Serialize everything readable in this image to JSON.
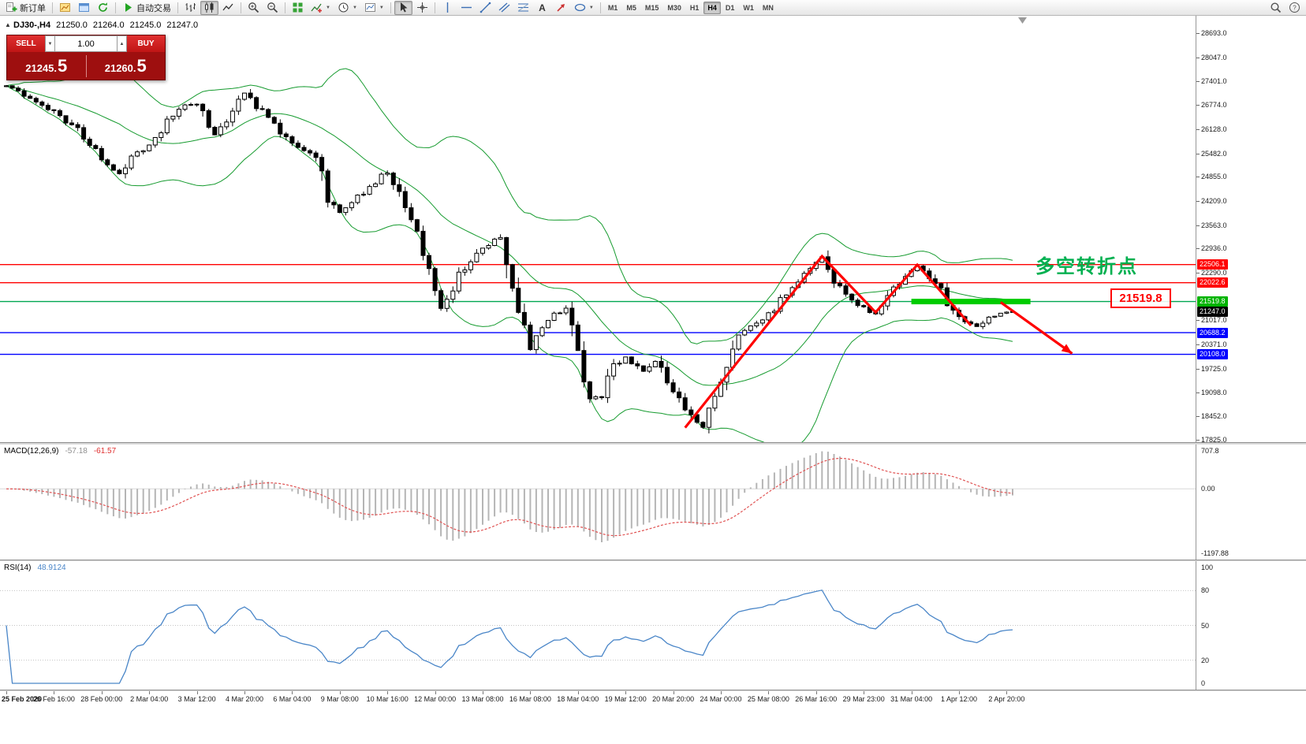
{
  "toolbar": {
    "new_order_label": "新订单",
    "autotrading_label": "自动交易",
    "timeframes": [
      "M1",
      "M5",
      "M15",
      "M30",
      "H1",
      "H4",
      "D1",
      "W1",
      "MN"
    ],
    "active_timeframe": "H4"
  },
  "trade_panel": {
    "sell_label": "SELL",
    "buy_label": "BUY",
    "volume": "1.00",
    "sell_price_small": "21245.",
    "sell_price_big": "5",
    "buy_price_small": "21260.",
    "buy_price_big": "5"
  },
  "chart_header": {
    "symbol_period": "DJ30-,H4",
    "open": "21250.0",
    "high": "21264.0",
    "low": "21245.0",
    "close": "21247.0"
  },
  "annotations": {
    "turning_point_text": "多空转折点",
    "price_label": "21519.8"
  },
  "indicator_panels": {
    "macd": {
      "label": "MACD(12,26,9)",
      "value1": "-57.18",
      "value2": "-61.57"
    },
    "rsi": {
      "label": "RSI(14)",
      "value": "48.9124"
    }
  },
  "price_axis": {
    "ticks": [
      "28693.0",
      "28047.0",
      "27401.0",
      "26774.0",
      "26128.0",
      "25482.0",
      "24855.0",
      "24209.0",
      "23563.0",
      "22936.0",
      "22290.0",
      "21017.0",
      "20371.0",
      "19725.0",
      "19098.0",
      "18452.0",
      "17825.0"
    ],
    "badges": [
      {
        "text": "22506.1",
        "color": "#ff0000"
      },
      {
        "text": "22022.6",
        "color": "#ff0000"
      },
      {
        "text": "21519.8",
        "color": "#00b400"
      },
      {
        "text": "21247.0",
        "color": "#000000"
      },
      {
        "text": "20688.2",
        "color": "#0000ff"
      },
      {
        "text": "20108.0",
        "color": "#0000ff"
      }
    ]
  },
  "time_axis": {
    "labels": [
      "25 Feb 2020",
      "26 Feb 16:00",
      "28 Feb 00:00",
      "2 Mar 04:00",
      "3 Mar 12:00",
      "4 Mar 20:00",
      "6 Mar 04:00",
      "9 Mar 08:00",
      "10 Mar 16:00",
      "12 Mar 00:00",
      "13 Mar 08:00",
      "16 Mar 08:00",
      "18 Mar 04:00",
      "19 Mar 12:00",
      "20 Mar 20:00",
      "24 Mar 00:00",
      "25 Mar 08:00",
      "26 Mar 16:00",
      "29 Mar 23:00",
      "31 Mar 04:00",
      "1 Apr 12:00",
      "2 Apr 20:00"
    ]
  },
  "chart_data": {
    "type": "candlestick",
    "symbol": "DJ30-",
    "timeframe": "H4",
    "last_bar_ohlc": {
      "open": 21250.0,
      "high": 21264.0,
      "low": 21245.0,
      "close": 21247.0
    },
    "bar_count": 170,
    "price_axis_range": {
      "top": 28693.0,
      "bottom": 17825.0
    },
    "close_anchors": [
      [
        0,
        27320
      ],
      [
        3,
        27050
      ],
      [
        8,
        26600
      ],
      [
        12,
        26100
      ],
      [
        16,
        25350
      ],
      [
        19,
        24950
      ],
      [
        21,
        25410
      ],
      [
        24,
        25700
      ],
      [
        29,
        26700
      ],
      [
        32,
        26850
      ],
      [
        35,
        26000
      ],
      [
        38,
        26600
      ],
      [
        40,
        27080
      ],
      [
        44,
        26400
      ],
      [
        48,
        25750
      ],
      [
        52,
        25350
      ],
      [
        54,
        24300
      ],
      [
        56,
        23900
      ],
      [
        60,
        24450
      ],
      [
        64,
        25000
      ],
      [
        68,
        23700
      ],
      [
        71,
        22300
      ],
      [
        73,
        21300
      ],
      [
        76,
        22250
      ],
      [
        80,
        22950
      ],
      [
        83,
        23300
      ],
      [
        85,
        21900
      ],
      [
        88,
        20300
      ],
      [
        90,
        20800
      ],
      [
        92,
        21150
      ],
      [
        94,
        21300
      ],
      [
        96,
        20000
      ],
      [
        98,
        19000
      ],
      [
        100,
        18900
      ],
      [
        102,
        19800
      ],
      [
        104,
        20050
      ],
      [
        107,
        19650
      ],
      [
        109,
        19950
      ],
      [
        112,
        19150
      ],
      [
        114,
        18700
      ],
      [
        116,
        18300
      ],
      [
        117,
        18200
      ],
      [
        118,
        18550
      ],
      [
        120,
        19400
      ],
      [
        123,
        20700
      ],
      [
        126,
        20950
      ],
      [
        128,
        21150
      ],
      [
        131,
        21750
      ],
      [
        134,
        22250
      ],
      [
        137,
        22730
      ],
      [
        139,
        22050
      ],
      [
        142,
        21500
      ],
      [
        146,
        21180
      ],
      [
        149,
        21900
      ],
      [
        153,
        22480
      ],
      [
        156,
        22050
      ],
      [
        159,
        21250
      ],
      [
        161,
        20950
      ],
      [
        163,
        20850
      ],
      [
        165,
        21100
      ],
      [
        167,
        21180
      ],
      [
        169,
        21247
      ]
    ],
    "horizontal_levels": [
      {
        "price": 22506.1,
        "color": "#ff0000"
      },
      {
        "price": 22022.6,
        "color": "#ff0000"
      },
      {
        "price": 21519.8,
        "color": "#00a651"
      },
      {
        "price": 20688.2,
        "color": "#0000ff"
      },
      {
        "price": 20108.0,
        "color": "#0000ff"
      }
    ],
    "support_zone": {
      "price": 21519.8,
      "from_bar": 152,
      "to_bar": 172,
      "color": "#00cc00"
    },
    "trend_lines": [
      {
        "points": [
          [
            114,
            18150
          ],
          [
            137,
            22730
          ],
          [
            146,
            21230
          ],
          [
            153,
            22500
          ],
          [
            162,
            20880
          ]
        ],
        "color": "#ff0000",
        "arrow": false
      },
      {
        "points": [
          [
            167,
            21500
          ],
          [
            179,
            20130
          ]
        ],
        "color": "#ff0000",
        "arrow": true
      }
    ],
    "overlays": {
      "bollinger_bands": {
        "period": 20,
        "deviation": 2,
        "color": "#169b2f"
      }
    },
    "indicators": [
      {
        "name": "MACD",
        "params": [
          12,
          26,
          9
        ],
        "current": [
          -57.18,
          -61.57
        ],
        "axis_labels": [
          "707.8",
          "0.00",
          "-1197.88"
        ]
      },
      {
        "name": "RSI",
        "params": [
          14
        ],
        "current": 48.9124,
        "axis_labels": [
          "100",
          "80",
          "50",
          "20",
          "0"
        ],
        "levels": [
          80,
          50,
          20
        ]
      }
    ]
  }
}
